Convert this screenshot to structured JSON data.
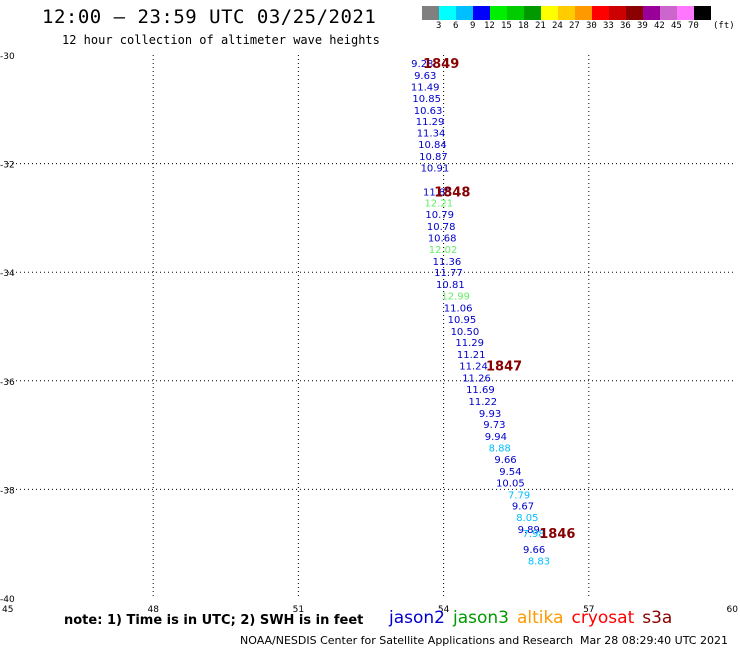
{
  "header": {
    "title": "12:00 – 23:59 UTC 03/25/2021",
    "subtitle": "12 hour collection of altimeter wave heights"
  },
  "colorbar": {
    "colors": [
      "#808080",
      "#00ffff",
      "#00bfff",
      "#0000ff",
      "#00ee00",
      "#00cc00",
      "#009900",
      "#ffff00",
      "#ffcc00",
      "#ff9900",
      "#ff0000",
      "#cc0000",
      "#8b0000",
      "#990099",
      "#cc66cc",
      "#ff77ff",
      "#000000"
    ],
    "labels": [
      "3",
      "6",
      "9",
      "12",
      "15",
      "18",
      "21",
      "24",
      "27",
      "30",
      "33",
      "36",
      "39",
      "42",
      "45",
      "70"
    ],
    "units": "(ft)"
  },
  "footer": {
    "note": "note:  1) Time is in UTC;  2) SWH is in feet",
    "legend": [
      {
        "name": "jason2",
        "color": "#0000cc"
      },
      {
        "name": "jason3",
        "color": "#009900"
      },
      {
        "name": "altika",
        "color": "#ff9900"
      },
      {
        "name": "cryosat",
        "color": "#ff0000"
      },
      {
        "name": "s3a",
        "color": "#880000"
      }
    ],
    "credit": "NOAA/NESDIS Center for Satellite Applications and Research",
    "timestamp": "Mar 28 08:29:40 UTC 2021"
  },
  "chart_data": {
    "type": "scatter",
    "xlim": [
      45,
      60
    ],
    "ylim": [
      -40,
      -30
    ],
    "xticks": [
      45,
      48,
      51,
      54,
      57,
      60
    ],
    "yticks": [
      -30,
      -32,
      -34,
      -36,
      -38,
      -40
    ],
    "xtick_labels": [
      "45",
      "48",
      "51",
      "54",
      "57",
      "60"
    ],
    "ytick_labels": [
      "-30",
      "-32",
      "-34",
      "-36",
      "-38",
      "-40"
    ],
    "grid": true,
    "points": [
      {
        "x": 53.56,
        "y": -30.15,
        "value": "9.28",
        "color": "#0000cc"
      },
      {
        "x": 53.62,
        "y": -30.37,
        "value": "9.63",
        "color": "#0000cc"
      },
      {
        "x": 53.62,
        "y": -30.58,
        "value": "11.49",
        "color": "#0000cc"
      },
      {
        "x": 53.65,
        "y": -30.79,
        "value": "10.85",
        "color": "#0000cc"
      },
      {
        "x": 53.68,
        "y": -31.01,
        "value": "10.63",
        "color": "#0000cc"
      },
      {
        "x": 53.72,
        "y": -31.22,
        "value": "11.29",
        "color": "#0000cc"
      },
      {
        "x": 53.74,
        "y": -31.43,
        "value": "11.34",
        "color": "#0000cc"
      },
      {
        "x": 53.77,
        "y": -31.64,
        "value": "10.84",
        "color": "#0000cc"
      },
      {
        "x": 53.79,
        "y": -31.86,
        "value": "10.87",
        "color": "#0000cc"
      },
      {
        "x": 53.82,
        "y": -32.07,
        "value": "10.91",
        "color": "#0000cc"
      },
      {
        "x": 53.87,
        "y": -32.51,
        "value": "11.85",
        "color": "#0000cc"
      },
      {
        "x": 53.9,
        "y": -32.72,
        "value": "12.21",
        "color": "#66ee66"
      },
      {
        "x": 53.92,
        "y": -32.93,
        "value": "10.79",
        "color": "#0000cc"
      },
      {
        "x": 53.95,
        "y": -33.15,
        "value": "10.78",
        "color": "#0000cc"
      },
      {
        "x": 53.97,
        "y": -33.36,
        "value": "10.68",
        "color": "#0000cc"
      },
      {
        "x": 53.99,
        "y": -33.57,
        "value": "12.02",
        "color": "#66ee66"
      },
      {
        "x": 54.07,
        "y": -33.79,
        "value": "11.36",
        "color": "#0000cc"
      },
      {
        "x": 54.1,
        "y": -34.0,
        "value": "11.77",
        "color": "#0000cc"
      },
      {
        "x": 54.14,
        "y": -34.22,
        "value": "10.81",
        "color": "#0000cc"
      },
      {
        "x": 54.25,
        "y": -34.43,
        "value": "12.99",
        "color": "#66ee66"
      },
      {
        "x": 54.3,
        "y": -34.65,
        "value": "11.06",
        "color": "#0000cc"
      },
      {
        "x": 54.38,
        "y": -34.86,
        "value": "10.95",
        "color": "#0000cc"
      },
      {
        "x": 54.44,
        "y": -35.08,
        "value": "10.50",
        "color": "#0000cc"
      },
      {
        "x": 54.54,
        "y": -35.29,
        "value": "11.29",
        "color": "#0000cc"
      },
      {
        "x": 54.57,
        "y": -35.51,
        "value": "11.21",
        "color": "#0000cc"
      },
      {
        "x": 54.62,
        "y": -35.72,
        "value": "11.24",
        "color": "#0000cc"
      },
      {
        "x": 54.68,
        "y": -35.94,
        "value": "11.26",
        "color": "#0000cc"
      },
      {
        "x": 54.76,
        "y": -36.15,
        "value": "11.69",
        "color": "#0000cc"
      },
      {
        "x": 54.81,
        "y": -36.37,
        "value": "11.22",
        "color": "#0000cc"
      },
      {
        "x": 54.96,
        "y": -36.59,
        "value": "9.93",
        "color": "#0000cc"
      },
      {
        "x": 55.05,
        "y": -36.8,
        "value": "9.73",
        "color": "#0000cc"
      },
      {
        "x": 55.08,
        "y": -37.02,
        "value": "9.94",
        "color": "#0000cc"
      },
      {
        "x": 55.16,
        "y": -37.23,
        "value": "8.88",
        "color": "#00bfff"
      },
      {
        "x": 55.28,
        "y": -37.44,
        "value": "9.66",
        "color": "#0000cc"
      },
      {
        "x": 55.38,
        "y": -37.66,
        "value": "9.54",
        "color": "#0000cc"
      },
      {
        "x": 55.38,
        "y": -37.87,
        "value": "10.05",
        "color": "#0000cc"
      },
      {
        "x": 55.56,
        "y": -38.09,
        "value": "7.79",
        "color": "#00bfff"
      },
      {
        "x": 55.64,
        "y": -38.3,
        "value": "9.67",
        "color": "#0000cc"
      },
      {
        "x": 55.73,
        "y": -38.51,
        "value": "8.05",
        "color": "#00bfff"
      },
      {
        "x": 55.76,
        "y": -38.73,
        "value": "9.89",
        "color": "#0000cc"
      },
      {
        "x": 55.86,
        "y": -38.8,
        "value": "7.98",
        "color": "#00bfff"
      },
      {
        "x": 55.87,
        "y": -39.1,
        "value": "9.66",
        "color": "#0000cc"
      },
      {
        "x": 55.97,
        "y": -39.31,
        "value": "8.83",
        "color": "#00bfff"
      }
    ],
    "annotations": [
      {
        "text": "1849",
        "x": 53.95,
        "y": -30.15,
        "color": "#880000"
      },
      {
        "text": "1848",
        "x": 54.18,
        "y": -32.51,
        "color": "#880000"
      },
      {
        "text": "1847",
        "x": 55.25,
        "y": -35.72,
        "color": "#880000"
      },
      {
        "text": "1846",
        "x": 56.35,
        "y": -38.8,
        "color": "#880000"
      }
    ]
  }
}
